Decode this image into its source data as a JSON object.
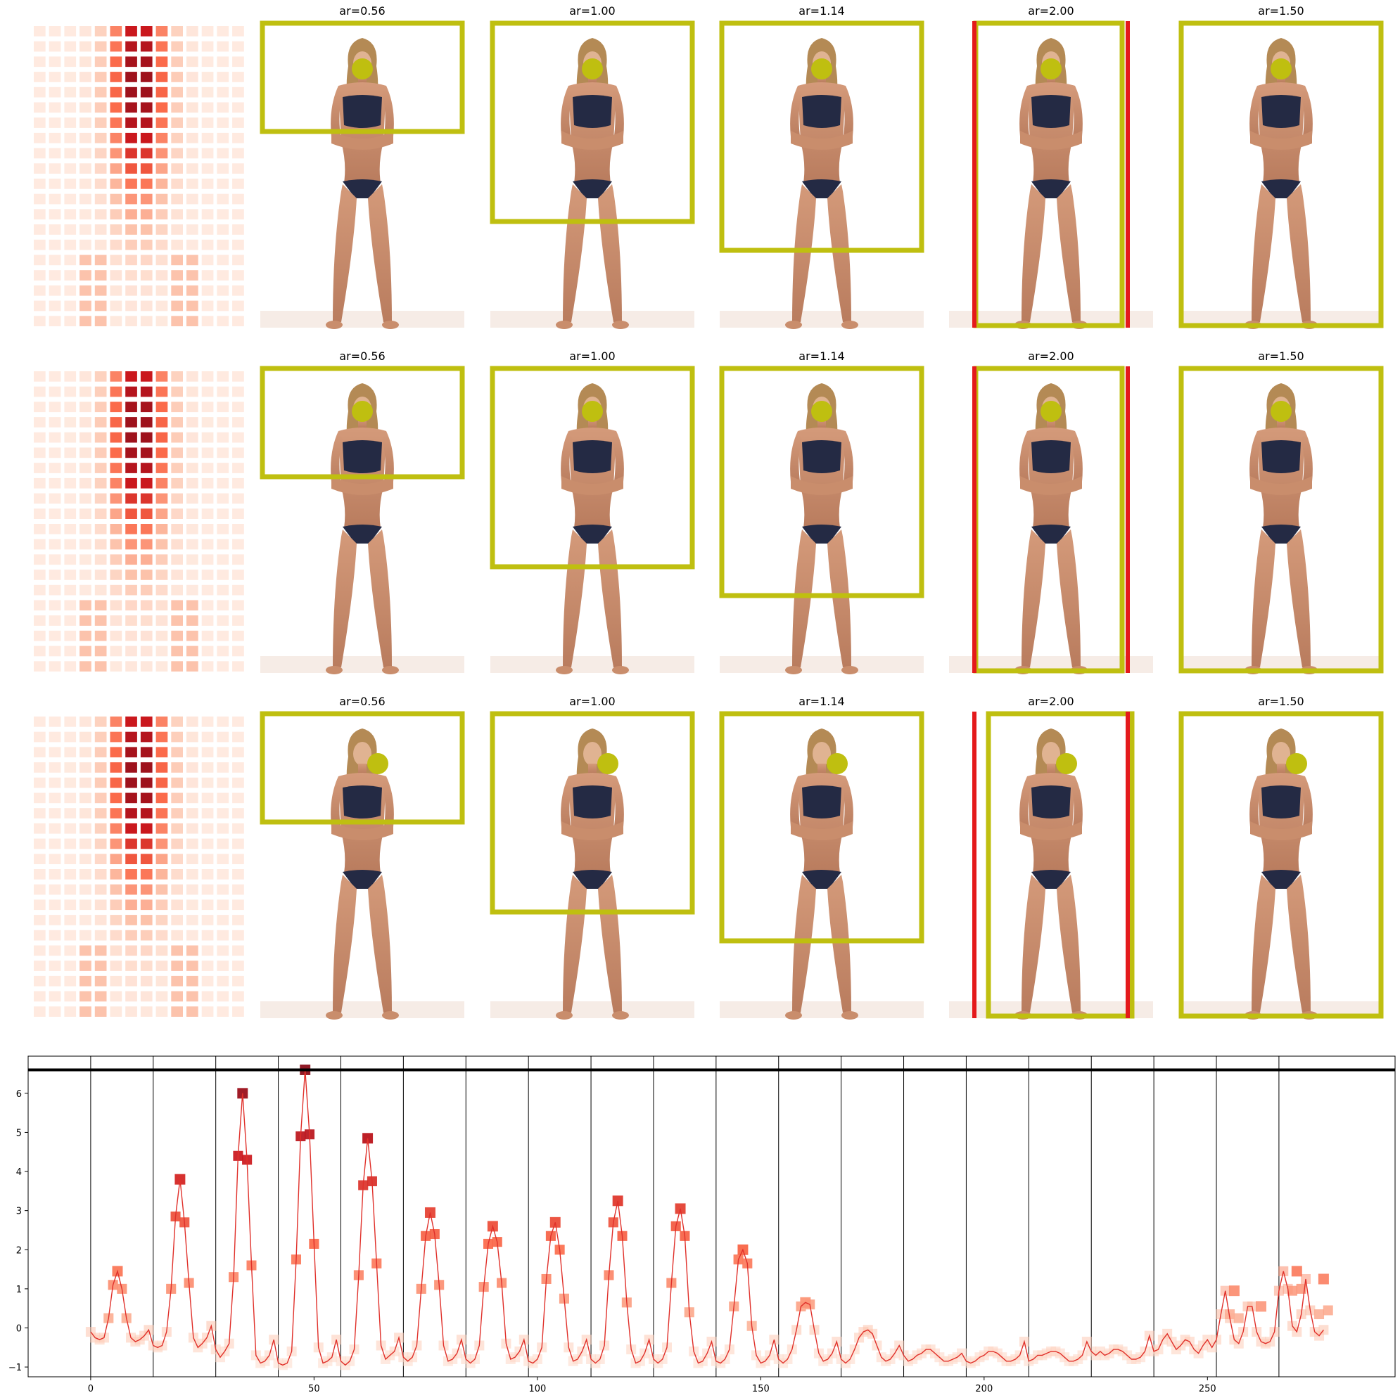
{
  "figure": {
    "rows": [
      {
        "panels": [
          "ar=0.56",
          "ar=1.00",
          "ar=1.14",
          "ar=2.00",
          "ar=1.50"
        ]
      },
      {
        "panels": [
          "ar=0.56",
          "ar=1.00",
          "ar=1.14",
          "ar=2.00",
          "ar=1.50"
        ]
      },
      {
        "panels": [
          "ar=0.56",
          "ar=1.00",
          "ar=1.14",
          "ar=2.00",
          "ar=1.50"
        ]
      }
    ],
    "colors": {
      "box": "#bfbf10",
      "red_bar": "#e41a1c",
      "line": "#e0302a",
      "heat_light": "#fee8dc",
      "heat_dark": "#8b0f1c",
      "threshold": "#000000"
    }
  },
  "chart_data": {
    "type": "line",
    "title": "",
    "xlabel": "",
    "ylabel": "",
    "xlim": [
      -14,
      292
    ],
    "ylim": [
      -1.25,
      6.95
    ],
    "xticks": [
      0,
      50,
      100,
      150,
      200,
      250
    ],
    "yticks": [
      -1,
      0,
      1,
      2,
      3,
      4,
      5,
      6
    ],
    "threshold": 6.6,
    "vlines": [
      0,
      14,
      28,
      42,
      56,
      70,
      84,
      98,
      112,
      126,
      140,
      154,
      168,
      182,
      196,
      210,
      224,
      238,
      252,
      266
    ],
    "peaks": [
      {
        "x": 6,
        "y": 1.45
      },
      {
        "x": 20,
        "y": 3.8
      },
      {
        "x": 34,
        "y": 6.0
      },
      {
        "x": 48,
        "y": 6.6
      },
      {
        "x": 62,
        "y": 4.85
      },
      {
        "x": 76,
        "y": 2.95
      },
      {
        "x": 90,
        "y": 2.6
      },
      {
        "x": 104,
        "y": 2.7
      },
      {
        "x": 118,
        "y": 3.25
      },
      {
        "x": 132,
        "y": 3.05
      },
      {
        "x": 146,
        "y": 2.0
      },
      {
        "x": 160,
        "y": 0.65
      },
      {
        "x": 256,
        "y": 0.95
      },
      {
        "x": 262,
        "y": 0.55
      },
      {
        "x": 270,
        "y": 1.45
      },
      {
        "x": 276,
        "y": 1.25
      }
    ],
    "secondary_markers": [
      {
        "x": 5,
        "y": 1.1
      },
      {
        "x": 7,
        "y": 1.0
      },
      {
        "x": 4,
        "y": 0.25
      },
      {
        "x": 8,
        "y": 0.25
      },
      {
        "x": 19,
        "y": 2.85
      },
      {
        "x": 21,
        "y": 2.7
      },
      {
        "x": 18,
        "y": 1.0
      },
      {
        "x": 22,
        "y": 1.15
      },
      {
        "x": 33,
        "y": 4.4
      },
      {
        "x": 35,
        "y": 4.3
      },
      {
        "x": 32,
        "y": 1.3
      },
      {
        "x": 36,
        "y": 1.6
      },
      {
        "x": 47,
        "y": 4.9
      },
      {
        "x": 49,
        "y": 4.95
      },
      {
        "x": 46,
        "y": 1.75
      },
      {
        "x": 50,
        "y": 2.15
      },
      {
        "x": 61,
        "y": 3.65
      },
      {
        "x": 63,
        "y": 3.75
      },
      {
        "x": 60,
        "y": 1.35
      },
      {
        "x": 64,
        "y": 1.65
      },
      {
        "x": 75,
        "y": 2.35
      },
      {
        "x": 77,
        "y": 2.4
      },
      {
        "x": 74,
        "y": 1.0
      },
      {
        "x": 78,
        "y": 1.1
      },
      {
        "x": 89,
        "y": 2.15
      },
      {
        "x": 91,
        "y": 2.2
      },
      {
        "x": 88,
        "y": 1.05
      },
      {
        "x": 92,
        "y": 1.15
      },
      {
        "x": 103,
        "y": 2.35
      },
      {
        "x": 105,
        "y": 2.0
      },
      {
        "x": 102,
        "y": 1.25
      },
      {
        "x": 106,
        "y": 0.75
      },
      {
        "x": 117,
        "y": 2.7
      },
      {
        "x": 119,
        "y": 2.35
      },
      {
        "x": 116,
        "y": 1.35
      },
      {
        "x": 120,
        "y": 0.65
      },
      {
        "x": 131,
        "y": 2.6
      },
      {
        "x": 133,
        "y": 2.35
      },
      {
        "x": 130,
        "y": 1.15
      },
      {
        "x": 134,
        "y": 0.4
      },
      {
        "x": 145,
        "y": 1.75
      },
      {
        "x": 147,
        "y": 1.65
      },
      {
        "x": 144,
        "y": 0.55
      },
      {
        "x": 148,
        "y": 0.05
      },
      {
        "x": 159,
        "y": 0.55
      },
      {
        "x": 161,
        "y": 0.6
      },
      {
        "x": 255,
        "y": 0.35
      },
      {
        "x": 257,
        "y": 0.25
      },
      {
        "x": 269,
        "y": 0.95
      },
      {
        "x": 271,
        "y": 1.0
      },
      {
        "x": 275,
        "y": 0.35
      },
      {
        "x": 277,
        "y": 0.45
      }
    ],
    "series": [
      {
        "values": [
          -0.1,
          -0.25,
          -0.3,
          -0.25,
          0.25,
          1.1,
          1.45,
          1.0,
          0.25,
          -0.25,
          -0.35,
          -0.3,
          -0.2,
          -0.05,
          -0.45,
          -0.5,
          -0.45,
          -0.1,
          1.0,
          2.85,
          3.8,
          2.7,
          1.15,
          -0.25,
          -0.5,
          -0.4,
          -0.25,
          0.05,
          -0.55,
          -0.75,
          -0.6,
          -0.4,
          1.3,
          4.4,
          6.0,
          4.3,
          1.6,
          -0.7,
          -0.9,
          -0.85,
          -0.7,
          -0.3,
          -0.9,
          -0.95,
          -0.9,
          -0.6,
          1.75,
          4.9,
          6.6,
          4.95,
          2.15,
          -0.5,
          -0.9,
          -0.85,
          -0.75,
          -0.3,
          -0.85,
          -0.95,
          -0.85,
          -0.55,
          1.35,
          3.65,
          4.85,
          3.75,
          1.65,
          -0.45,
          -0.8,
          -0.7,
          -0.6,
          -0.25,
          -0.75,
          -0.85,
          -0.75,
          -0.45,
          1.0,
          2.35,
          2.95,
          2.4,
          1.1,
          -0.45,
          -0.85,
          -0.8,
          -0.65,
          -0.3,
          -0.8,
          -0.9,
          -0.8,
          -0.45,
          1.05,
          2.15,
          2.6,
          2.2,
          1.15,
          -0.4,
          -0.8,
          -0.75,
          -0.6,
          -0.3,
          -0.85,
          -0.9,
          -0.8,
          -0.5,
          1.25,
          2.35,
          2.7,
          2.0,
          0.75,
          -0.5,
          -0.85,
          -0.8,
          -0.6,
          -0.3,
          -0.8,
          -0.9,
          -0.8,
          -0.45,
          1.35,
          2.7,
          3.25,
          2.35,
          0.65,
          -0.55,
          -0.9,
          -0.85,
          -0.65,
          -0.3,
          -0.8,
          -0.9,
          -0.8,
          -0.5,
          1.15,
          2.6,
          3.05,
          2.35,
          0.4,
          -0.6,
          -0.9,
          -0.85,
          -0.65,
          -0.35,
          -0.85,
          -0.9,
          -0.8,
          -0.55,
          0.55,
          1.75,
          2.0,
          1.65,
          0.05,
          -0.7,
          -0.9,
          -0.85,
          -0.7,
          -0.3,
          -0.8,
          -0.9,
          -0.8,
          -0.55,
          -0.05,
          0.55,
          0.65,
          0.6,
          -0.05,
          -0.65,
          -0.85,
          -0.8,
          -0.65,
          -0.35,
          -0.8,
          -0.9,
          -0.8,
          -0.55,
          -0.25,
          -0.1,
          -0.05,
          -0.15,
          -0.45,
          -0.75,
          -0.85,
          -0.8,
          -0.65,
          -0.45,
          -0.7,
          -0.85,
          -0.8,
          -0.7,
          -0.65,
          -0.55,
          -0.55,
          -0.65,
          -0.75,
          -0.85,
          -0.85,
          -0.8,
          -0.75,
          -0.65,
          -0.85,
          -0.9,
          -0.85,
          -0.75,
          -0.7,
          -0.6,
          -0.6,
          -0.65,
          -0.75,
          -0.85,
          -0.85,
          -0.8,
          -0.7,
          -0.35,
          -0.85,
          -0.8,
          -0.7,
          -0.7,
          -0.65,
          -0.6,
          -0.6,
          -0.65,
          -0.75,
          -0.85,
          -0.85,
          -0.8,
          -0.7,
          -0.35,
          -0.6,
          -0.7,
          -0.6,
          -0.7,
          -0.65,
          -0.55,
          -0.55,
          -0.6,
          -0.7,
          -0.8,
          -0.8,
          -0.75,
          -0.6,
          -0.2,
          -0.6,
          -0.55,
          -0.3,
          -0.15,
          -0.35,
          -0.55,
          -0.45,
          -0.3,
          -0.35,
          -0.55,
          -0.65,
          -0.45,
          -0.3,
          -0.5,
          -0.3,
          0.35,
          0.95,
          0.25,
          -0.3,
          -0.4,
          -0.1,
          0.55,
          0.55,
          -0.1,
          -0.35,
          -0.4,
          -0.35,
          -0.1,
          0.95,
          1.45,
          1.0,
          0.05,
          -0.1,
          0.35,
          1.25,
          0.45,
          -0.1,
          -0.2,
          -0.05
        ]
      }
    ]
  }
}
